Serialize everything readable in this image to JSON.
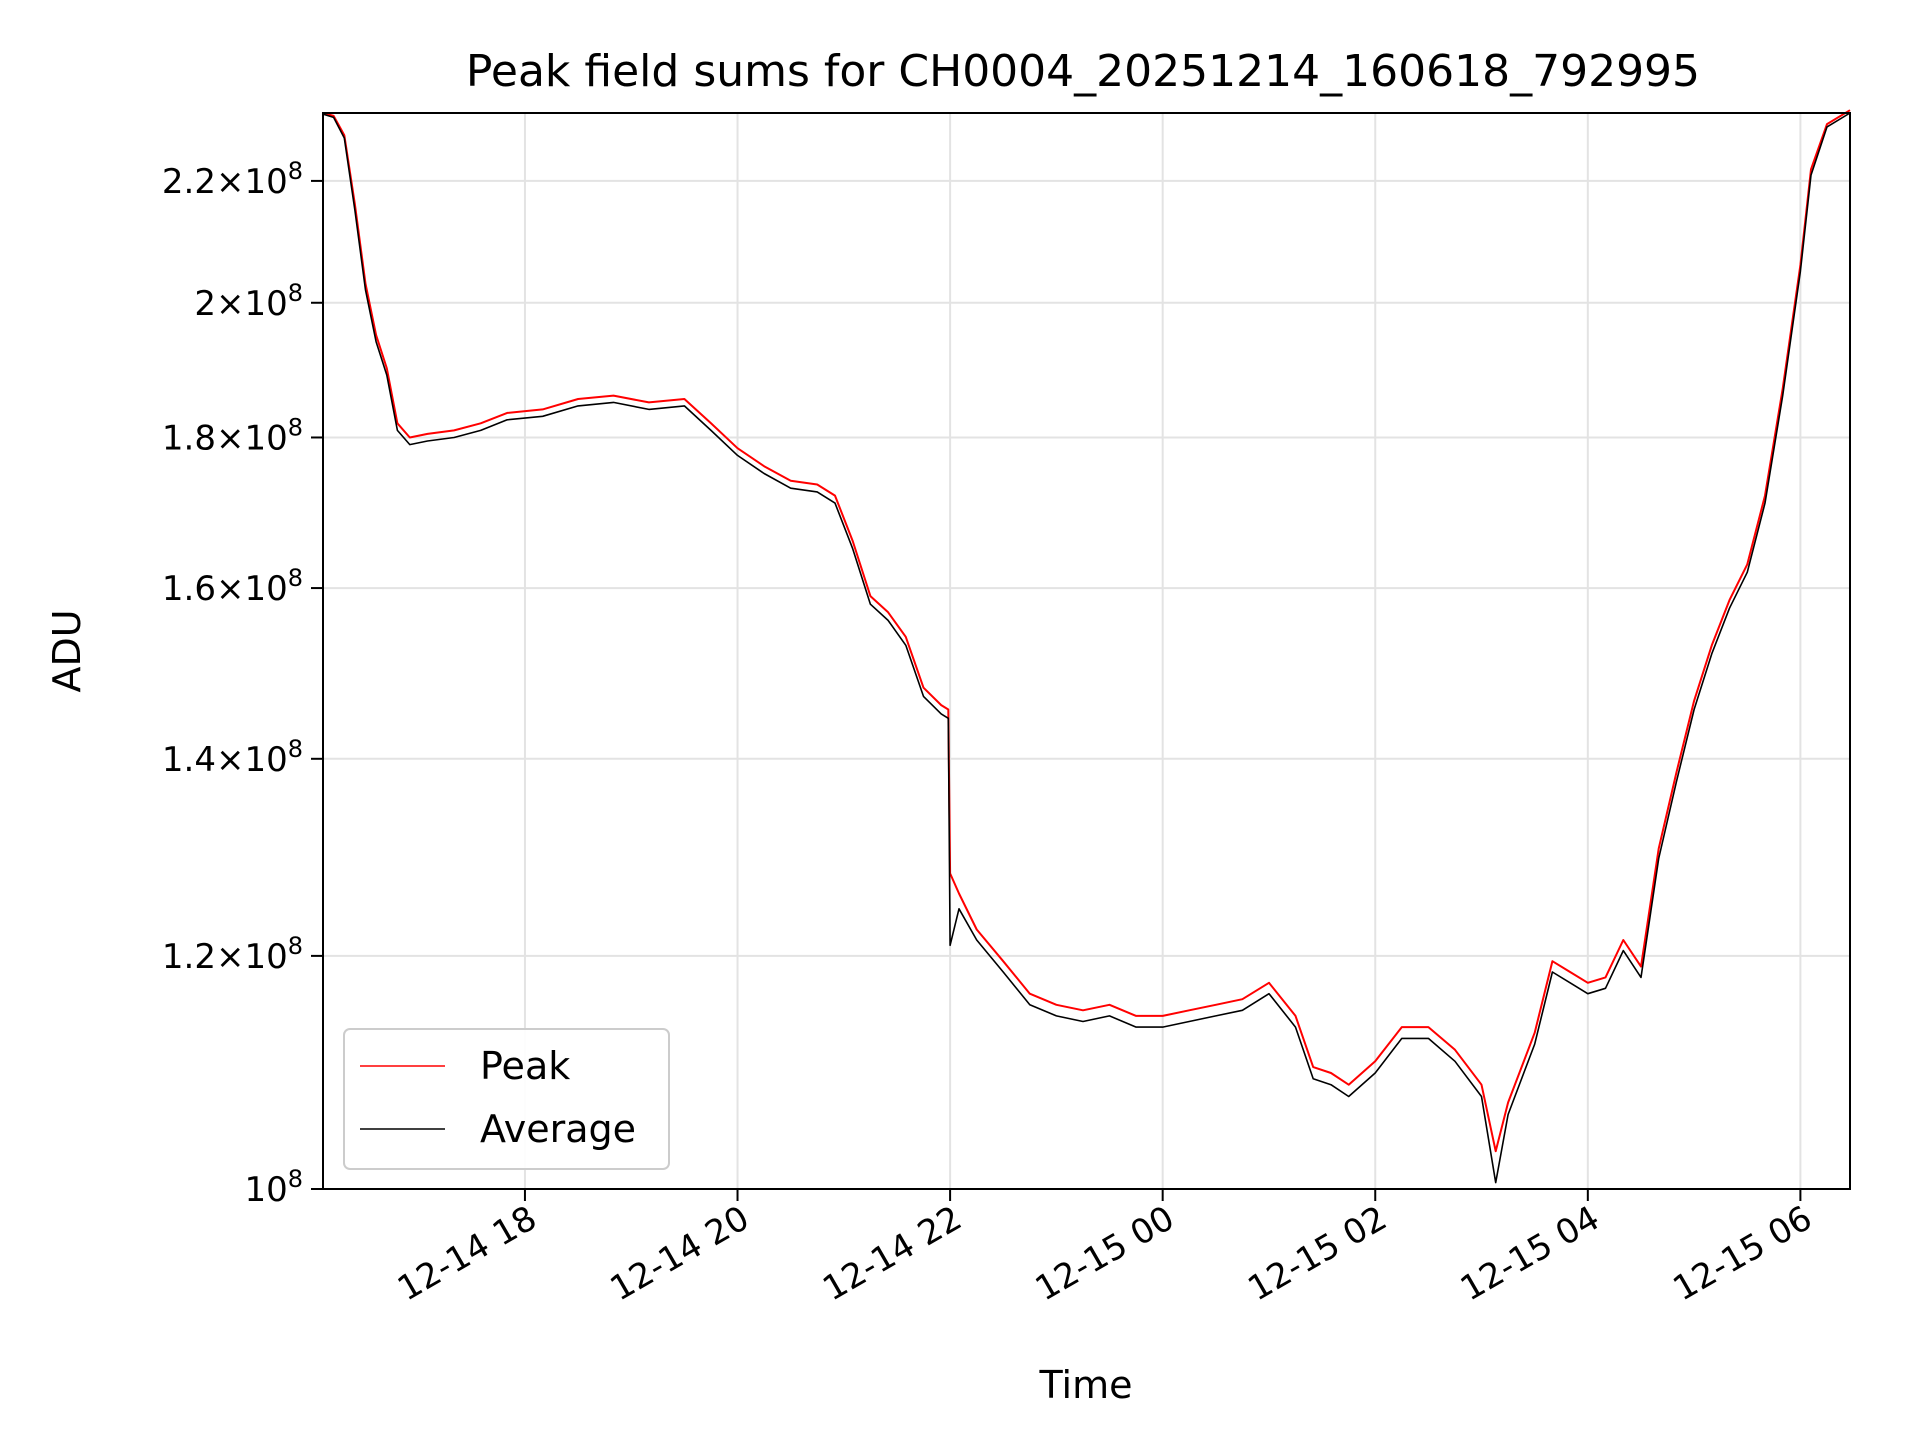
{
  "chart_data": {
    "type": "line",
    "title": "Peak field sums for CH0004_20251214_160618_792995",
    "xlabel": "Time",
    "ylabel": "ADU",
    "y_scale": "log",
    "grid": true,
    "legend_position": "lower-left",
    "xlim": [
      "2025-12-14 16:06",
      "2025-12-15 06:28"
    ],
    "ylim": [
      100000000,
      232000000
    ],
    "x_ticks": [
      {
        "value": "2025-12-14 18:00",
        "label": "12-14 18"
      },
      {
        "value": "2025-12-14 20:00",
        "label": "12-14 20"
      },
      {
        "value": "2025-12-14 22:00",
        "label": "12-14 22"
      },
      {
        "value": "2025-12-15 00:00",
        "label": "12-15 00"
      },
      {
        "value": "2025-12-15 02:00",
        "label": "12-15 02"
      },
      {
        "value": "2025-12-15 04:00",
        "label": "12-15 04"
      },
      {
        "value": "2025-12-15 06:00",
        "label": "12-15 06"
      }
    ],
    "y_ticks": [
      {
        "value": 100000000,
        "mantissa": "",
        "exponent": "8"
      },
      {
        "value": 120000000,
        "mantissa": "1.2",
        "exponent": "8"
      },
      {
        "value": 140000000,
        "mantissa": "1.4",
        "exponent": "8"
      },
      {
        "value": 160000000,
        "mantissa": "1.6",
        "exponent": "8"
      },
      {
        "value": 180000000,
        "mantissa": "1.8",
        "exponent": "8"
      },
      {
        "value": 200000000,
        "mantissa": "2",
        "exponent": "8"
      },
      {
        "value": 220000000,
        "mantissa": "2.2",
        "exponent": "8"
      }
    ],
    "series": [
      {
        "name": "Peak",
        "color": "#ff0000",
        "points": [
          [
            "2025-12-14 16:06",
            232000000
          ],
          [
            "2025-12-14 16:12",
            231500000
          ],
          [
            "2025-12-14 16:18",
            228000000
          ],
          [
            "2025-12-14 16:24",
            216000000
          ],
          [
            "2025-12-14 16:30",
            203000000
          ],
          [
            "2025-12-14 16:36",
            195000000
          ],
          [
            "2025-12-14 16:42",
            190000000
          ],
          [
            "2025-12-14 16:48",
            182000000
          ],
          [
            "2025-12-14 16:55",
            180000000
          ],
          [
            "2025-12-14 17:05",
            180500000
          ],
          [
            "2025-12-14 17:20",
            181000000
          ],
          [
            "2025-12-14 17:35",
            182000000
          ],
          [
            "2025-12-14 17:50",
            183500000
          ],
          [
            "2025-12-14 18:10",
            184000000
          ],
          [
            "2025-12-14 18:30",
            185500000
          ],
          [
            "2025-12-14 18:50",
            186000000
          ],
          [
            "2025-12-14 19:10",
            185000000
          ],
          [
            "2025-12-14 19:30",
            185500000
          ],
          [
            "2025-12-14 19:45",
            182000000
          ],
          [
            "2025-12-14 20:00",
            178500000
          ],
          [
            "2025-12-14 20:15",
            176000000
          ],
          [
            "2025-12-14 20:30",
            174000000
          ],
          [
            "2025-12-14 20:45",
            173500000
          ],
          [
            "2025-12-14 20:55",
            172000000
          ],
          [
            "2025-12-14 21:05",
            166000000
          ],
          [
            "2025-12-14 21:15",
            159000000
          ],
          [
            "2025-12-14 21:25",
            157000000
          ],
          [
            "2025-12-14 21:35",
            154000000
          ],
          [
            "2025-12-14 21:45",
            148000000
          ],
          [
            "2025-12-14 21:55",
            146000000
          ],
          [
            "2025-12-14 21:59",
            145500000
          ],
          [
            "2025-12-14 22:00",
            128000000
          ],
          [
            "2025-12-14 22:05",
            126000000
          ],
          [
            "2025-12-14 22:15",
            122500000
          ],
          [
            "2025-12-14 22:30",
            119500000
          ],
          [
            "2025-12-14 22:45",
            116500000
          ],
          [
            "2025-12-14 23:00",
            115500000
          ],
          [
            "2025-12-14 23:15",
            115000000
          ],
          [
            "2025-12-14 23:30",
            115500000
          ],
          [
            "2025-12-14 23:45",
            114500000
          ],
          [
            "2025-12-15 00:00",
            114500000
          ],
          [
            "2025-12-15 00:15",
            115000000
          ],
          [
            "2025-12-15 00:30",
            115500000
          ],
          [
            "2025-12-15 00:45",
            116000000
          ],
          [
            "2025-12-15 01:00",
            117500000
          ],
          [
            "2025-12-15 01:15",
            114500000
          ],
          [
            "2025-12-15 01:25",
            110000000
          ],
          [
            "2025-12-15 01:35",
            109500000
          ],
          [
            "2025-12-15 01:45",
            108500000
          ],
          [
            "2025-12-15 02:00",
            110500000
          ],
          [
            "2025-12-15 02:15",
            113500000
          ],
          [
            "2025-12-15 02:30",
            113500000
          ],
          [
            "2025-12-15 02:45",
            111500000
          ],
          [
            "2025-12-15 03:00",
            108500000
          ],
          [
            "2025-12-15 03:08",
            103000000
          ],
          [
            "2025-12-15 03:15",
            107000000
          ],
          [
            "2025-12-15 03:30",
            113000000
          ],
          [
            "2025-12-15 03:40",
            119500000
          ],
          [
            "2025-12-15 03:50",
            118500000
          ],
          [
            "2025-12-15 04:00",
            117500000
          ],
          [
            "2025-12-15 04:10",
            118000000
          ],
          [
            "2025-12-15 04:20",
            121500000
          ],
          [
            "2025-12-15 04:30",
            119000000
          ],
          [
            "2025-12-15 04:40",
            130500000
          ],
          [
            "2025-12-15 04:50",
            138500000
          ],
          [
            "2025-12-15 05:00",
            146500000
          ],
          [
            "2025-12-15 05:10",
            153000000
          ],
          [
            "2025-12-15 05:20",
            158500000
          ],
          [
            "2025-12-15 05:30",
            163000000
          ],
          [
            "2025-12-15 05:40",
            172000000
          ],
          [
            "2025-12-15 05:50",
            187000000
          ],
          [
            "2025-12-15 06:00",
            206000000
          ],
          [
            "2025-12-15 06:06",
            222000000
          ],
          [
            "2025-12-15 06:15",
            230000000
          ],
          [
            "2025-12-15 06:28",
            232500000
          ]
        ]
      },
      {
        "name": "Average",
        "color": "#000000",
        "points": [
          [
            "2025-12-14 16:06",
            231800000
          ],
          [
            "2025-12-14 16:12",
            231200000
          ],
          [
            "2025-12-14 16:18",
            227500000
          ],
          [
            "2025-12-14 16:24",
            215000000
          ],
          [
            "2025-12-14 16:30",
            202000000
          ],
          [
            "2025-12-14 16:36",
            194000000
          ],
          [
            "2025-12-14 16:42",
            189000000
          ],
          [
            "2025-12-14 16:48",
            181000000
          ],
          [
            "2025-12-14 16:55",
            179000000
          ],
          [
            "2025-12-14 17:05",
            179500000
          ],
          [
            "2025-12-14 17:20",
            180000000
          ],
          [
            "2025-12-14 17:35",
            181000000
          ],
          [
            "2025-12-14 17:50",
            182500000
          ],
          [
            "2025-12-14 18:10",
            183000000
          ],
          [
            "2025-12-14 18:30",
            184500000
          ],
          [
            "2025-12-14 18:50",
            185000000
          ],
          [
            "2025-12-14 19:10",
            184000000
          ],
          [
            "2025-12-14 19:30",
            184500000
          ],
          [
            "2025-12-14 19:45",
            181000000
          ],
          [
            "2025-12-14 20:00",
            177500000
          ],
          [
            "2025-12-14 20:15",
            175000000
          ],
          [
            "2025-12-14 20:30",
            173000000
          ],
          [
            "2025-12-14 20:45",
            172500000
          ],
          [
            "2025-12-14 20:55",
            171000000
          ],
          [
            "2025-12-14 21:05",
            165000000
          ],
          [
            "2025-12-14 21:15",
            158000000
          ],
          [
            "2025-12-14 21:25",
            156000000
          ],
          [
            "2025-12-14 21:35",
            153000000
          ],
          [
            "2025-12-14 21:45",
            147000000
          ],
          [
            "2025-12-14 21:55",
            145000000
          ],
          [
            "2025-12-14 21:59",
            144500000
          ],
          [
            "2025-12-14 22:00",
            121000000
          ],
          [
            "2025-12-14 22:05",
            124500000
          ],
          [
            "2025-12-14 22:15",
            121500000
          ],
          [
            "2025-12-14 22:30",
            118500000
          ],
          [
            "2025-12-14 22:45",
            115500000
          ],
          [
            "2025-12-14 23:00",
            114500000
          ],
          [
            "2025-12-14 23:15",
            114000000
          ],
          [
            "2025-12-14 23:30",
            114500000
          ],
          [
            "2025-12-14 23:45",
            113500000
          ],
          [
            "2025-12-15 00:00",
            113500000
          ],
          [
            "2025-12-15 00:15",
            114000000
          ],
          [
            "2025-12-15 00:30",
            114500000
          ],
          [
            "2025-12-15 00:45",
            115000000
          ],
          [
            "2025-12-15 01:00",
            116500000
          ],
          [
            "2025-12-15 01:15",
            113500000
          ],
          [
            "2025-12-15 01:25",
            109000000
          ],
          [
            "2025-12-15 01:35",
            108500000
          ],
          [
            "2025-12-15 01:45",
            107500000
          ],
          [
            "2025-12-15 02:00",
            109500000
          ],
          [
            "2025-12-15 02:15",
            112500000
          ],
          [
            "2025-12-15 02:30",
            112500000
          ],
          [
            "2025-12-15 02:45",
            110500000
          ],
          [
            "2025-12-15 03:00",
            107500000
          ],
          [
            "2025-12-15 03:08",
            100500000
          ],
          [
            "2025-12-15 03:15",
            106000000
          ],
          [
            "2025-12-15 03:30",
            112000000
          ],
          [
            "2025-12-15 03:40",
            118500000
          ],
          [
            "2025-12-15 03:50",
            117500000
          ],
          [
            "2025-12-15 04:00",
            116500000
          ],
          [
            "2025-12-15 04:10",
            117000000
          ],
          [
            "2025-12-15 04:20",
            120500000
          ],
          [
            "2025-12-15 04:30",
            118000000
          ],
          [
            "2025-12-15 04:40",
            129500000
          ],
          [
            "2025-12-15 04:50",
            137500000
          ],
          [
            "2025-12-15 05:00",
            145500000
          ],
          [
            "2025-12-15 05:10",
            152000000
          ],
          [
            "2025-12-15 05:20",
            157500000
          ],
          [
            "2025-12-15 05:30",
            162000000
          ],
          [
            "2025-12-15 05:40",
            171000000
          ],
          [
            "2025-12-15 05:50",
            186000000
          ],
          [
            "2025-12-15 06:00",
            205000000
          ],
          [
            "2025-12-15 06:06",
            221000000
          ],
          [
            "2025-12-15 06:15",
            229500000
          ],
          [
            "2025-12-15 06:28",
            232000000
          ]
        ]
      }
    ]
  }
}
